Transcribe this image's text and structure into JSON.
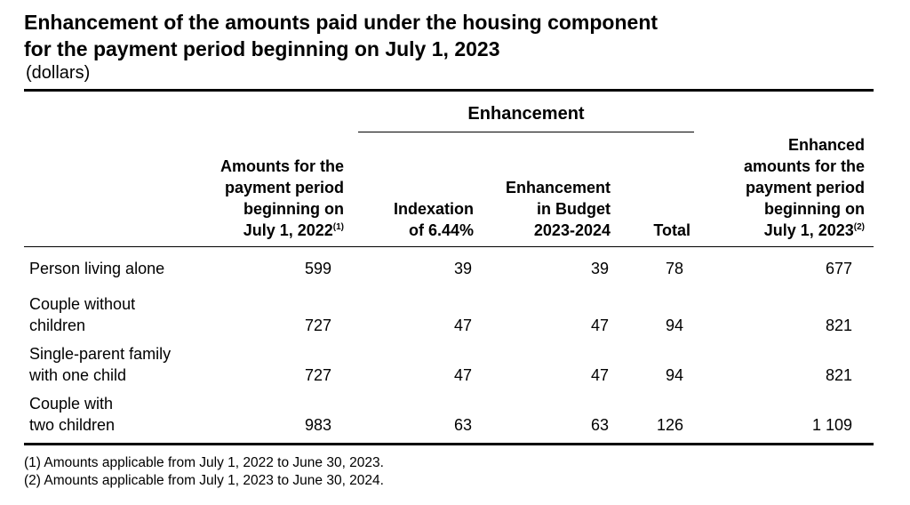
{
  "title_line1": "Enhancement of the amounts paid under the housing component",
  "title_line2": "for the payment period beginning on July 1, 2023",
  "unit": "(dollars)",
  "group_header": "Enhancement",
  "columns": {
    "amount_2022": [
      "Amounts for the",
      "payment period",
      "beginning on",
      "July 1, 2022"
    ],
    "amount_2022_sup": "(1)",
    "indexation": [
      "Indexation",
      "of 6.44%"
    ],
    "budget": [
      "Enhancement",
      "in Budget",
      "2023-2024"
    ],
    "total": "Total",
    "amount_2023": [
      "Enhanced",
      "amounts for the",
      "payment period",
      "beginning on",
      "July 1, 2023"
    ],
    "amount_2023_sup": "(2)"
  },
  "rows": [
    {
      "label": [
        "Person living alone"
      ],
      "amount_2022": "599",
      "indexation": "39",
      "budget": "39",
      "total": "78",
      "amount_2023": "677"
    },
    {
      "label": [
        "Couple without",
        "children"
      ],
      "amount_2022": "727",
      "indexation": "47",
      "budget": "47",
      "total": "94",
      "amount_2023": "821"
    },
    {
      "label": [
        "Single-parent family",
        "with one child"
      ],
      "amount_2022": "727",
      "indexation": "47",
      "budget": "47",
      "total": "94",
      "amount_2023": "821"
    },
    {
      "label": [
        "Couple with",
        "two children"
      ],
      "amount_2022": "983",
      "indexation": "63",
      "budget": "63",
      "total": "126",
      "amount_2023": "1 109"
    }
  ],
  "notes": [
    "(1) Amounts applicable from July 1, 2022 to June 30, 2023.",
    "(2) Amounts applicable from July 1, 2023 to June 30, 2024."
  ]
}
